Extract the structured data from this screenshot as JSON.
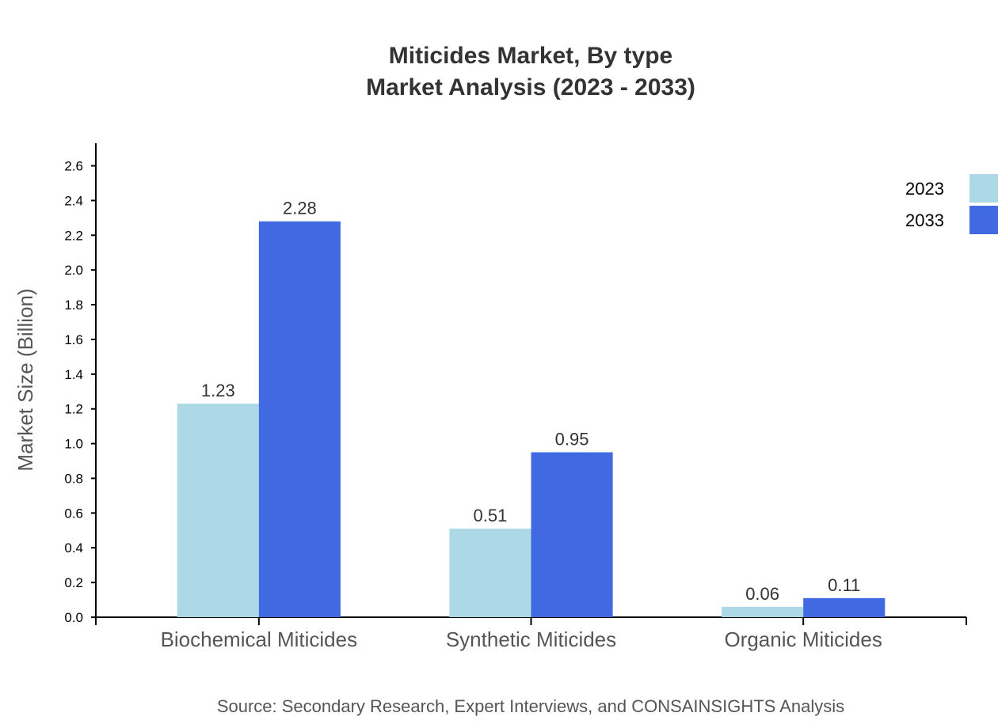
{
  "chart_data": {
    "type": "bar",
    "title": "Miticides Market, By type",
    "subtitle": "Market Analysis (2023 - 2033)",
    "xlabel": "",
    "ylabel": "Market Size (Billion)",
    "ylim": [
      0,
      2.73
    ],
    "yticks": [
      "0.0",
      "0.2",
      "0.4",
      "0.6",
      "0.8",
      "1.0",
      "1.2",
      "1.4",
      "1.6",
      "1.8",
      "2.0",
      "2.2",
      "2.4",
      "2.6"
    ],
    "categories": [
      "Biochemical Miticides",
      "Synthetic Miticides",
      "Organic Miticides"
    ],
    "series": [
      {
        "name": "2023",
        "color": "#ADD8E6",
        "values": [
          1.23,
          0.51,
          0.06
        ]
      },
      {
        "name": "2033",
        "color": "#4169E1",
        "values": [
          2.28,
          0.95,
          0.11
        ]
      }
    ],
    "legend_position": "top-right",
    "grid": false,
    "source": "Source: Secondary Research, Expert Interviews, and CONSAINSIGHTS Analysis"
  }
}
